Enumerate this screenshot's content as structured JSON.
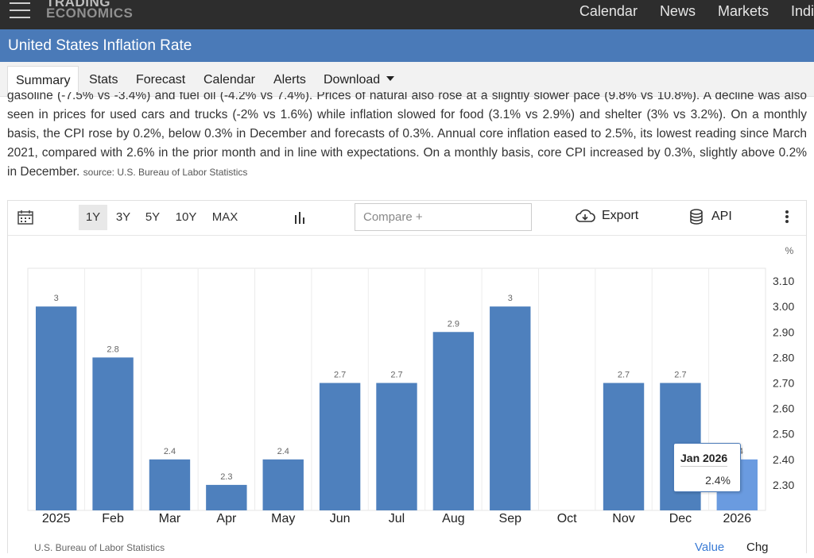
{
  "nav": {
    "logo_line1": "TRADING",
    "logo_line2": "ECONOMICS",
    "links": [
      "Calendar",
      "News",
      "Markets",
      "Indi"
    ]
  },
  "page": {
    "title": "United States Inflation Rate"
  },
  "tabs": [
    {
      "label": "Summary",
      "active": true
    },
    {
      "label": "Stats"
    },
    {
      "label": "Forecast"
    },
    {
      "label": "Calendar"
    },
    {
      "label": "Alerts"
    },
    {
      "label": "Download"
    }
  ],
  "description": {
    "text": "gasoline (-7.5% vs -3.4%) and fuel oil (-4.2% vs 7.4%). Prices of natural also rose at a slightly slower pace (9.8% vs 10.8%). A decline was also seen in prices for used cars and trucks (-2% vs 1.6%) while inflation slowed for food (3.1% vs 2.9%) and shelter (3% vs 3.2%). On a monthly basis, the CPI rose by 0.2%, below 0.3% in December and forecasts of 0.3%. Annual core inflation eased to 2.5%, its lowest reading since March 2021, compared with 2.6% in the prior month and in line with expectations. On a monthly basis, core CPI increased by 0.3%, slightly above 0.2% in December.",
    "source": "source: U.S. Bureau of Labor Statistics"
  },
  "toolbar": {
    "ranges": [
      "1Y",
      "3Y",
      "5Y",
      "10Y",
      "MAX"
    ],
    "active_range": "1Y",
    "compare_placeholder": "Compare +",
    "export_label": "Export",
    "api_label": "API"
  },
  "chart_data": {
    "type": "bar",
    "unit_label": "%",
    "categories": [
      "2025",
      "Feb",
      "Mar",
      "Apr",
      "May",
      "Jun",
      "Jul",
      "Aug",
      "Sep",
      "Oct",
      "Nov",
      "Dec",
      "2026"
    ],
    "values": [
      3.0,
      2.8,
      2.4,
      2.3,
      2.4,
      2.7,
      2.7,
      2.9,
      3.0,
      null,
      2.7,
      2.7,
      2.4
    ],
    "data_labels": [
      "3",
      "2.8",
      "2.4",
      "2.3",
      "2.4",
      "2.7",
      "2.7",
      "2.9",
      "3",
      "",
      "2.7",
      "2.7",
      "2.4"
    ],
    "ylim": [
      2.2,
      3.15
    ],
    "yticks": [
      "3.10",
      "3.00",
      "2.90",
      "2.80",
      "2.70",
      "2.60",
      "2.50",
      "2.40",
      "2.30"
    ],
    "ytick_values": [
      3.1,
      3.0,
      2.9,
      2.8,
      2.7,
      2.6,
      2.5,
      2.4,
      2.3
    ],
    "bar_color": "#4e80bd",
    "highlight_color": "#6a9be0",
    "highlight_index": 12,
    "grid": "vertical"
  },
  "tooltip": {
    "title": "Jan 2026",
    "value": "2.4%"
  },
  "footer": {
    "source": "U.S. Bureau of Labor Statistics",
    "value_label": "Value",
    "chg_label": "Chg"
  }
}
